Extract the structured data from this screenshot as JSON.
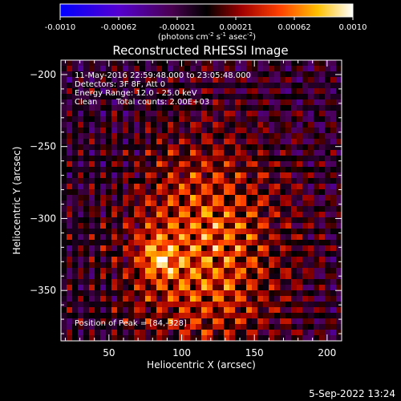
{
  "colorbar": {
    "ticks": [
      "-0.0010",
      "-0.00062",
      "-0.00021",
      "0.00021",
      "0.00062",
      "0.0010"
    ],
    "unit_main": "(photons cm",
    "unit_sup1": "-2",
    "unit_s": " s",
    "unit_sup2": "-1",
    "unit_asec": " asec",
    "unit_sup3": "-2",
    "unit_close": ")"
  },
  "chart_data": {
    "type": "heatmap",
    "title": "Reconstructed RHESSI Image",
    "xlabel": "Heliocentric X (arcsec)",
    "ylabel": "Heliocentric Y (arcsec)",
    "xlim": [
      17,
      210
    ],
    "ylim": [
      -385,
      -190
    ],
    "xticks": [
      "50",
      "100",
      "150",
      "200"
    ],
    "yticks": [
      "-200",
      "-250",
      "-300",
      "-350"
    ],
    "colormap": "RHESSI (blue-purple-black-red-orange-yellow-white)",
    "value_range": [
      -0.001,
      0.001
    ],
    "peak": [
      84,
      -328
    ],
    "annotations": [
      "11-May-2016 22:59:48.000 to 23:05:48.000",
      "Detectors: 3F 8F, Att 0",
      "Energy Range: 12.0 - 25.0 keV",
      "Clean",
      "Total counts: 2.00E+03"
    ],
    "peak_label": "Position of Peak = [84,-328]"
  },
  "timestamp": "5-Sep-2022 13:24"
}
